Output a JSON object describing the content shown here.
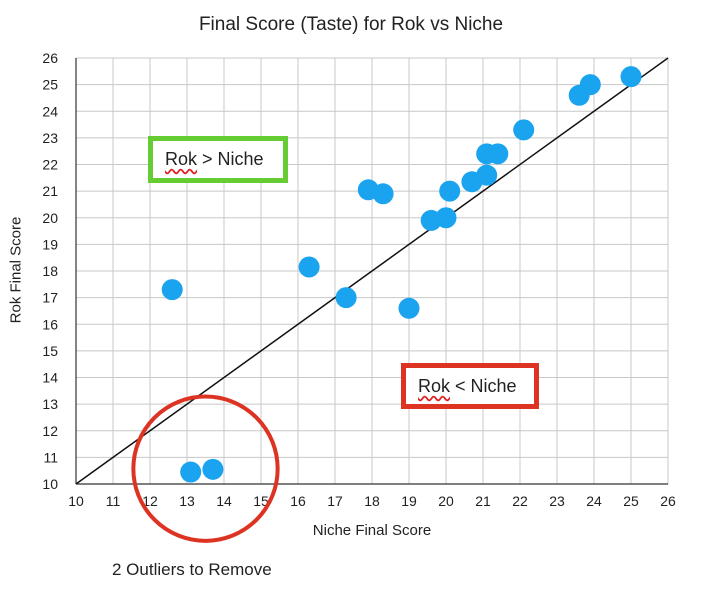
{
  "chart_data": {
    "type": "scatter",
    "title": "Final Score (Taste) for Rok vs Niche",
    "xlabel": "Niche Final Score",
    "ylabel": "Rok Final Score",
    "xlim": [
      10,
      26
    ],
    "ylim": [
      10,
      26
    ],
    "xticks": [
      10,
      11,
      12,
      13,
      14,
      15,
      16,
      17,
      18,
      19,
      20,
      21,
      22,
      23,
      24,
      25,
      26
    ],
    "yticks": [
      10,
      11,
      12,
      13,
      14,
      15,
      16,
      17,
      18,
      19,
      20,
      21,
      22,
      23,
      24,
      25,
      26
    ],
    "grid": true,
    "reference_line": {
      "type": "y=x"
    },
    "point_color": "#1aa3ee",
    "points": [
      {
        "x": 12.6,
        "y": 17.3
      },
      {
        "x": 13.1,
        "y": 10.45
      },
      {
        "x": 13.7,
        "y": 10.55
      },
      {
        "x": 16.3,
        "y": 18.15
      },
      {
        "x": 17.3,
        "y": 17.0
      },
      {
        "x": 17.9,
        "y": 21.05
      },
      {
        "x": 18.3,
        "y": 20.9
      },
      {
        "x": 19.0,
        "y": 16.6
      },
      {
        "x": 19.6,
        "y": 19.9
      },
      {
        "x": 20.0,
        "y": 20.0
      },
      {
        "x": 20.1,
        "y": 21.0
      },
      {
        "x": 20.7,
        "y": 21.35
      },
      {
        "x": 21.1,
        "y": 21.6
      },
      {
        "x": 21.1,
        "y": 22.4
      },
      {
        "x": 21.4,
        "y": 22.4
      },
      {
        "x": 22.1,
        "y": 23.3
      },
      {
        "x": 23.6,
        "y": 24.6
      },
      {
        "x": 23.9,
        "y": 25.0
      },
      {
        "x": 25.0,
        "y": 25.3
      }
    ],
    "annotations": {
      "upper_region": "Rok > Niche",
      "lower_region": "Rok < Niche",
      "outlier_note": "2 Outliers to Remove",
      "upper_box_color": "#66cc33",
      "lower_box_color": "#dd3322",
      "circle_color": "#dd3322"
    },
    "outlier_circle": {
      "center": {
        "x": 13.5,
        "y": 10.5
      },
      "radius_x_units": 1.95
    }
  },
  "labels": {
    "upper_word": "Rok",
    "upper_rest": " > Niche",
    "lower_word": "Rok",
    "lower_rest": " < Niche"
  }
}
